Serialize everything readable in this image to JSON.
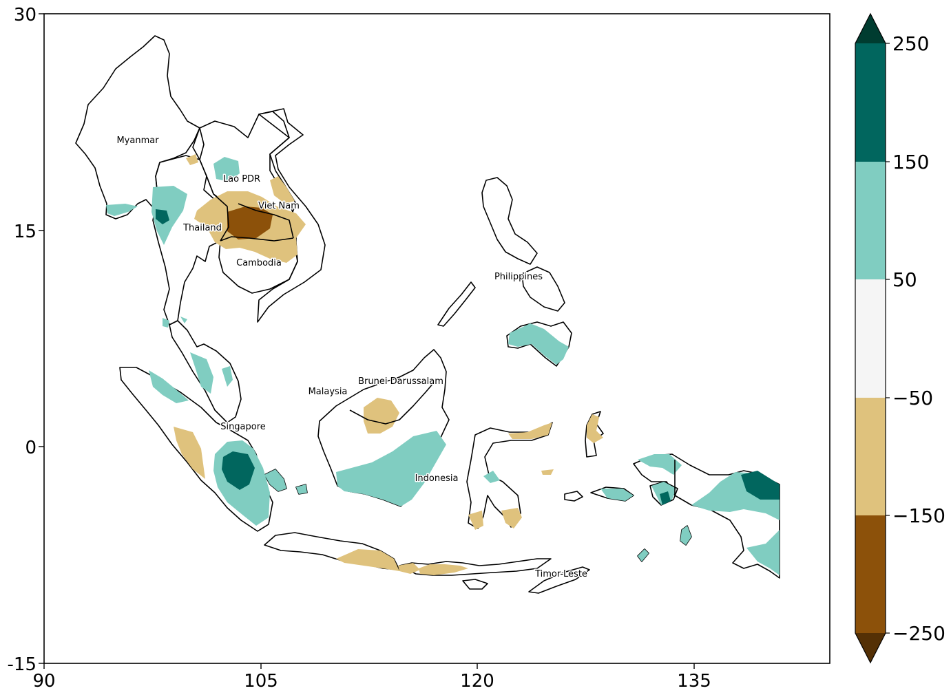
{
  "map": {
    "lon_range": [
      90,
      144.5
    ],
    "lat_range": [
      -15,
      30
    ],
    "x_ticks": [
      "90",
      "105",
      "120",
      "135"
    ],
    "y_ticks": [
      "30",
      "15",
      "0",
      "-15"
    ],
    "countries": [
      {
        "key": "myanmar",
        "label": "Myanmar"
      },
      {
        "key": "lao",
        "label": "Lao PDR"
      },
      {
        "key": "vietnam",
        "label": "Viet Nam"
      },
      {
        "key": "thailand",
        "label": "Thailand"
      },
      {
        "key": "cambodia",
        "label": "Cambodia"
      },
      {
        "key": "philippines",
        "label": "Philippines"
      },
      {
        "key": "brunei",
        "label": "Brunei Darussalam"
      },
      {
        "key": "malaysia",
        "label": "Malaysia"
      },
      {
        "key": "singapore",
        "label": "Singapore"
      },
      {
        "key": "indonesia",
        "label": "Indonesia"
      },
      {
        "key": "timor",
        "label": "Timor-Leste"
      }
    ]
  },
  "colorbar": {
    "ticks": [
      "250",
      "150",
      "50",
      "−50",
      "−150",
      "−250"
    ],
    "extend": "both",
    "colors": {
      "over": "#003c30",
      "b150_250": "#01665e",
      "b50_150": "#80cdc1",
      "bm50_50": "#f5f5f5",
      "bm150_m50": "#dfc27d",
      "bm250_m150": "#8c510a",
      "under": "#543005"
    }
  }
}
